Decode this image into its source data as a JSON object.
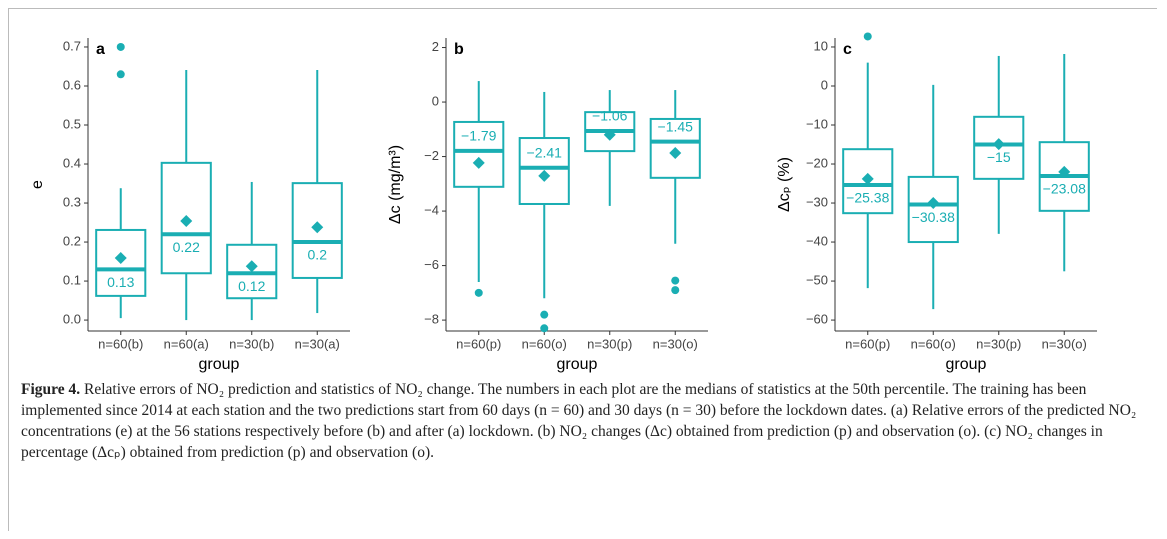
{
  "chart_data": [
    {
      "type": "box",
      "label": "a",
      "ylabel": "e",
      "xlabel": "group",
      "color": "#1aaeb3",
      "categories": [
        "n=60(b)",
        "n=60(a)",
        "n=30(b)",
        "n=30(a)"
      ],
      "whisker_low": [
        0.005,
        0.0,
        0.0,
        0.018
      ],
      "q1": [
        0.062,
        0.12,
        0.056,
        0.108
      ],
      "median": [
        0.13,
        0.22,
        0.12,
        0.2
      ],
      "q3": [
        0.231,
        0.403,
        0.193,
        0.351
      ],
      "whisker_high": [
        0.338,
        0.641,
        0.354,
        0.641
      ],
      "mean": [
        0.159,
        0.254,
        0.138,
        0.238
      ],
      "outliers": [
        [
          0.7,
          0.63
        ],
        [],
        [],
        []
      ],
      "ylim": [
        -0.028,
        0.723
      ],
      "yticks": [
        {
          "value": 0,
          "label": "0.0"
        },
        0.1,
        0.2,
        0.3,
        0.4,
        0.5,
        0.6,
        0.7
      ]
    },
    {
      "type": "box",
      "label": "b",
      "ylabel": "Δc (mg/m³)",
      "xlabel": "group",
      "color": "#1aaeb3",
      "categories": [
        "n=60(p)",
        "n=60(o)",
        "n=30(p)",
        "n=30(o)"
      ],
      "whisker_low": [
        -6.6,
        -7.2,
        -3.81,
        -5.2
      ],
      "q1": [
        -3.11,
        -3.74,
        -1.8,
        -2.78
      ],
      "median": [
        -1.79,
        -2.41,
        -1.06,
        -1.45
      ],
      "median_labels": [
        "−1.79",
        "−2.41",
        "−1.06",
        "−1.45"
      ],
      "q3": [
        -0.73,
        -1.32,
        -0.37,
        -0.62
      ],
      "whisker_high": [
        0.77,
        0.37,
        0.44,
        0.44
      ],
      "mean": [
        -2.23,
        -2.71,
        -1.2,
        -1.87
      ],
      "outliers": [
        [
          -7.0
        ],
        [
          -7.8,
          -8.3
        ],
        [],
        [
          -6.55,
          -6.9
        ]
      ],
      "ylim": [
        -8.4,
        2.35
      ],
      "yticks": [
        {
          "value": -8,
          "label": "−8"
        },
        {
          "value": -6,
          "label": "−6"
        },
        {
          "value": -4,
          "label": "−4"
        },
        {
          "value": -2,
          "label": "−2"
        },
        0,
        2
      ]
    },
    {
      "type": "box",
      "label": "c",
      "ylabel": "Δcₚ (%)",
      "xlabel": "group",
      "color": "#1aaeb3",
      "categories": [
        "n=60(p)",
        "n=60(o)",
        "n=30(p)",
        "n=30(o)"
      ],
      "whisker_low": [
        -51.8,
        -57.2,
        -37.9,
        -47.5
      ],
      "q1": [
        -32.6,
        -40,
        -23.8,
        -32
      ],
      "median": [
        -25.38,
        -30.38,
        -15,
        -23.08
      ],
      "median_labels": [
        "−25.38",
        "−30.38",
        "−15",
        "−23.08"
      ],
      "q3": [
        -16.2,
        -23.3,
        -7.9,
        -14.4
      ],
      "whisker_high": [
        6.0,
        0.3,
        7.7,
        8.2
      ],
      "mean": [
        -23.8,
        -30,
        -14.9,
        -22
      ],
      "outliers": [
        [
          12.7
        ],
        [],
        [],
        []
      ],
      "ylim": [
        -62.8,
        12.3
      ],
      "yticks": [
        {
          "value": -60,
          "label": "−60"
        },
        {
          "value": -50,
          "label": "−50"
        },
        {
          "value": -40,
          "label": "−40"
        },
        {
          "value": -30,
          "label": "−30"
        },
        {
          "value": -20,
          "label": "−20"
        },
        {
          "value": -10,
          "label": "−10"
        },
        0,
        10
      ]
    }
  ],
  "caption": {
    "label": "Figure 4.",
    "text": "Relative errors of NO₂ prediction and statistics of NO₂ change. The numbers in each plot are the medians of statistics at the 50th percentile. The training has been implemented since 2014 at each station and the two predictions start from 60 days (n = 60) and 30 days (n = 30) before the lockdown dates. (a) Relative errors of the predicted NO₂ concentrations (e) at the 56 stations respectively before (b) and after (a) lockdown. (b) NO₂ changes (Δc) obtained from prediction (p) and observation (o). (c) NO₂ changes in percentage (Δcₚ) obtained from prediction (p) and observation (o)."
  }
}
